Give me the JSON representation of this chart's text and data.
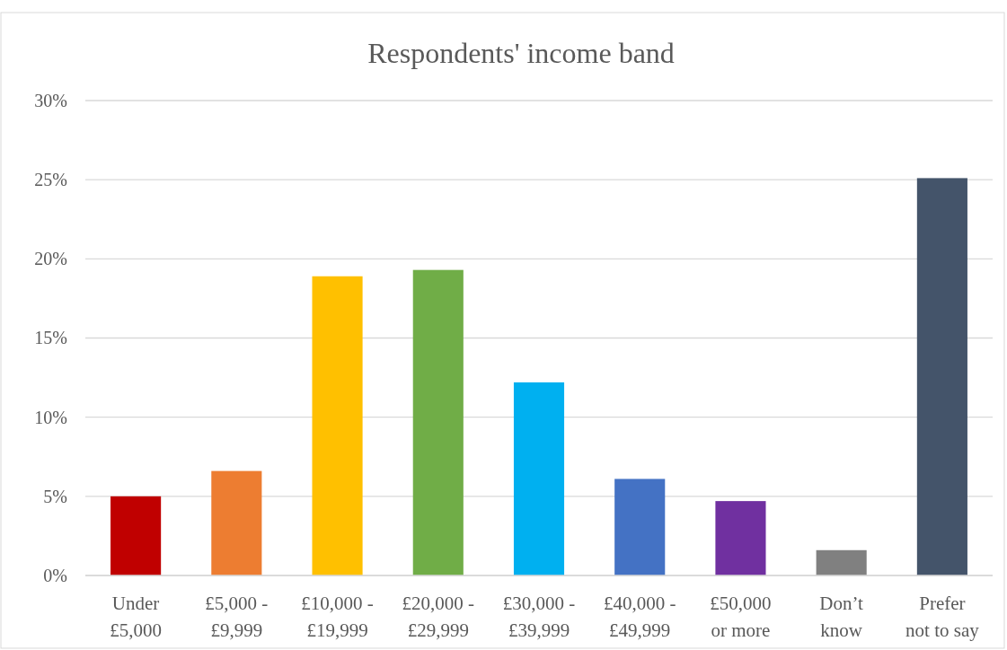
{
  "chart_data": {
    "type": "bar",
    "title": "Respondents' income band",
    "categories": [
      "Under £5,000",
      "£5,000 - £9,999",
      "£10,000 - £19,999",
      "£20,000 - £29,999",
      "£30,000 - £39,999",
      "£40,000 - £49,999",
      "£50,000 or more",
      "Don’t know",
      "Prefer not to say"
    ],
    "values": [
      5.0,
      6.6,
      18.9,
      19.3,
      12.2,
      6.1,
      4.7,
      1.6,
      25.1
    ],
    "colors": [
      "#c00000",
      "#ed7d31",
      "#ffc000",
      "#70ad47",
      "#00b0f0",
      "#4472c4",
      "#7030a0",
      "#808080",
      "#44546a"
    ],
    "ylim": [
      0,
      30
    ],
    "yticks": [
      {
        "value": 0,
        "label": "0%"
      },
      {
        "value": 5,
        "label": "5%"
      },
      {
        "value": 10,
        "label": "10%"
      },
      {
        "value": 15,
        "label": "15%"
      },
      {
        "value": 20,
        "label": "20%"
      },
      {
        "value": 25,
        "label": "25%"
      },
      {
        "value": 30,
        "label": "30%"
      }
    ],
    "grid": "y"
  }
}
